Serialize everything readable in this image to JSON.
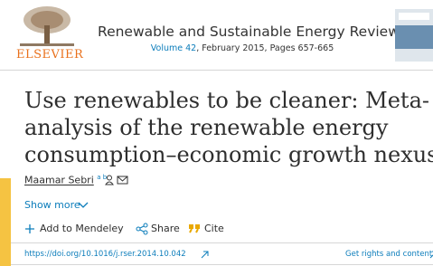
{
  "header": {
    "publisher": "ELSEVIER",
    "journal": "Renewable and Sustainable Energy Reviews",
    "volume": "Volume 42",
    "issue_info": ", February 2015, Pages 657-665"
  },
  "article": {
    "title": "Use renewables to be cleaner: Meta-analysis of the renewable energy consumption–economic growth nexus",
    "author": {
      "name": "Maamar Sebri",
      "affiliations": "a b"
    },
    "show_more": "Show more",
    "actions": [
      "Add to Mendeley",
      "Share",
      "Cite"
    ],
    "doi": "https://doi.org/10.1016/j.rser.2014.10.042",
    "rights": "Get rights and content"
  }
}
